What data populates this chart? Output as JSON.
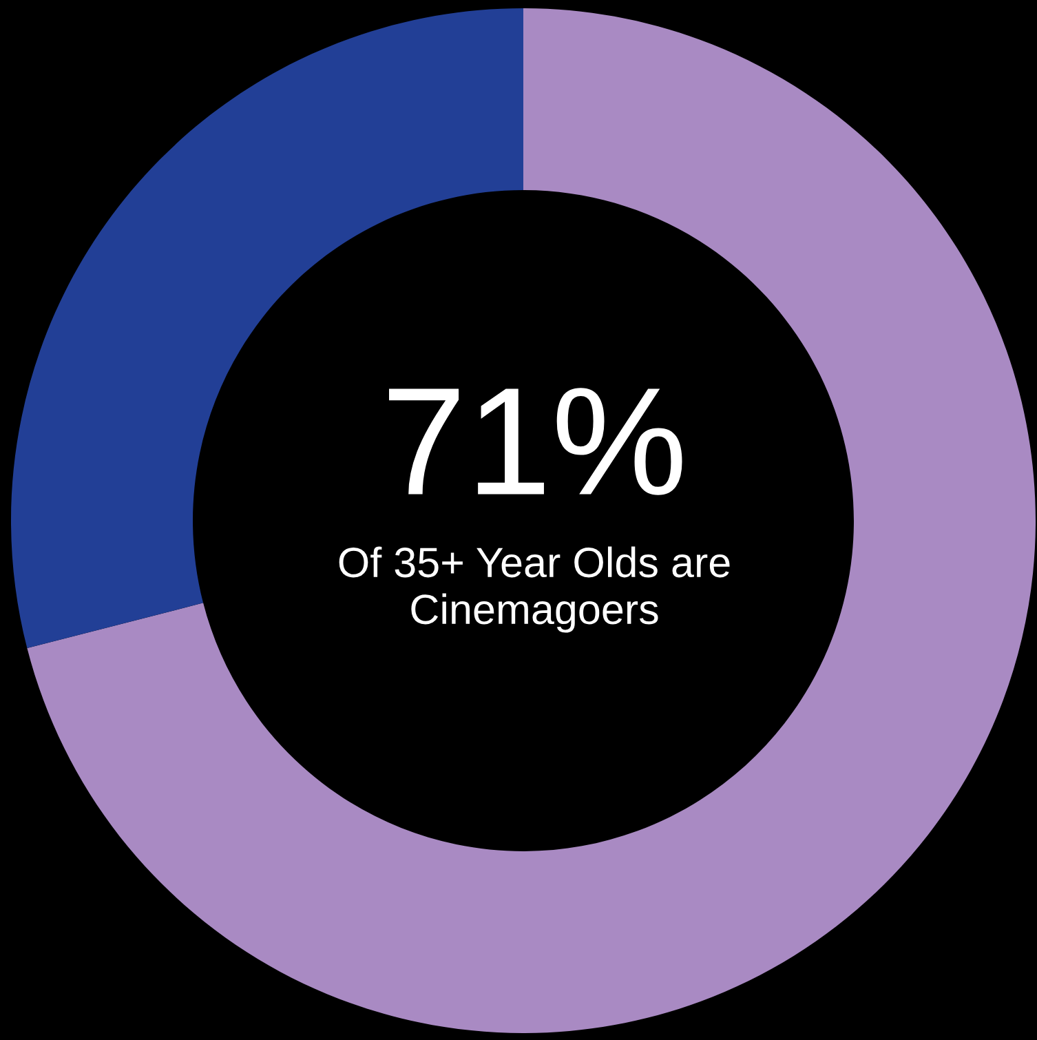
{
  "chart_data": {
    "type": "donut",
    "categories": [
      null,
      null
    ],
    "values": [
      71,
      29
    ],
    "colors": [
      "#a98ac3",
      "#223f96"
    ],
    "annotations": [
      "71%",
      "Of 35+ Year Olds are\nCinemagoers"
    ]
  }
}
